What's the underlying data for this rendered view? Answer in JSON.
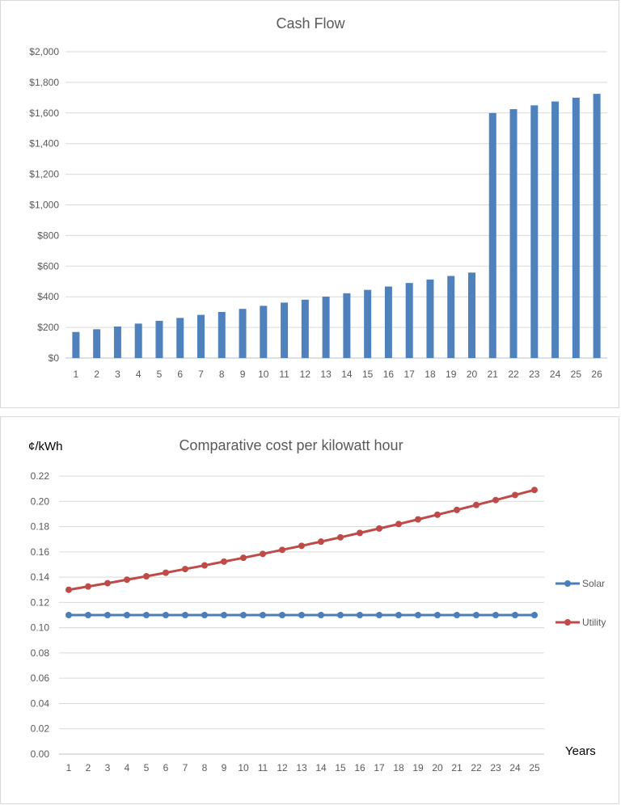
{
  "chart_data": [
    {
      "type": "bar",
      "title": "Cash Flow",
      "xlabel": "",
      "ylabel": "",
      "ylim": [
        0,
        2000
      ],
      "yticks": [
        "$0",
        "$200",
        "$400",
        "$600",
        "$800",
        "$1,000",
        "$1,200",
        "$1,400",
        "$1,600",
        "$1,800",
        "$2,000"
      ],
      "categories": [
        "1",
        "2",
        "3",
        "4",
        "5",
        "6",
        "7",
        "8",
        "9",
        "10",
        "11",
        "12",
        "13",
        "14",
        "15",
        "16",
        "17",
        "18",
        "19",
        "20",
        "21",
        "22",
        "23",
        "24",
        "25",
        "26"
      ],
      "values": [
        170,
        188,
        206,
        225,
        243,
        262,
        282,
        301,
        321,
        341,
        362,
        381,
        401,
        423,
        445,
        467,
        490,
        513,
        536,
        558,
        1600,
        1625,
        1650,
        1675,
        1700,
        1725
      ],
      "color": "#4f81bd",
      "grid": true
    },
    {
      "type": "line",
      "title": "Comparative cost per kilowatt hour",
      "ylabel": "¢/kWh",
      "xlabel": "Years",
      "ylim": [
        0,
        0.22
      ],
      "yticks": [
        "0.00",
        "0.02",
        "0.04",
        "0.06",
        "0.08",
        "0.10",
        "0.12",
        "0.14",
        "0.16",
        "0.18",
        "0.20",
        "0.22"
      ],
      "x": [
        "1",
        "2",
        "3",
        "4",
        "5",
        "6",
        "7",
        "8",
        "9",
        "10",
        "11",
        "12",
        "13",
        "14",
        "15",
        "16",
        "17",
        "18",
        "19",
        "20",
        "21",
        "22",
        "23",
        "24",
        "25"
      ],
      "series": [
        {
          "name": "Solar",
          "color": "#4a7ebb",
          "values": [
            0.11,
            0.11,
            0.11,
            0.11,
            0.11,
            0.11,
            0.11,
            0.11,
            0.11,
            0.11,
            0.11,
            0.11,
            0.11,
            0.11,
            0.11,
            0.11,
            0.11,
            0.11,
            0.11,
            0.11,
            0.11,
            0.11,
            0.11,
            0.11,
            0.11
          ]
        },
        {
          "name": "Utility",
          "color": "#be4b48",
          "values": [
            0.13,
            0.1326,
            0.1352,
            0.138,
            0.1407,
            0.1435,
            0.1464,
            0.1493,
            0.1523,
            0.1553,
            0.1584,
            0.1616,
            0.1648,
            0.1681,
            0.1715,
            0.175,
            0.1785,
            0.182,
            0.1857,
            0.1894,
            0.1932,
            0.1971,
            0.201,
            0.205,
            0.209
          ]
        }
      ],
      "legend": "right",
      "grid": true
    }
  ]
}
